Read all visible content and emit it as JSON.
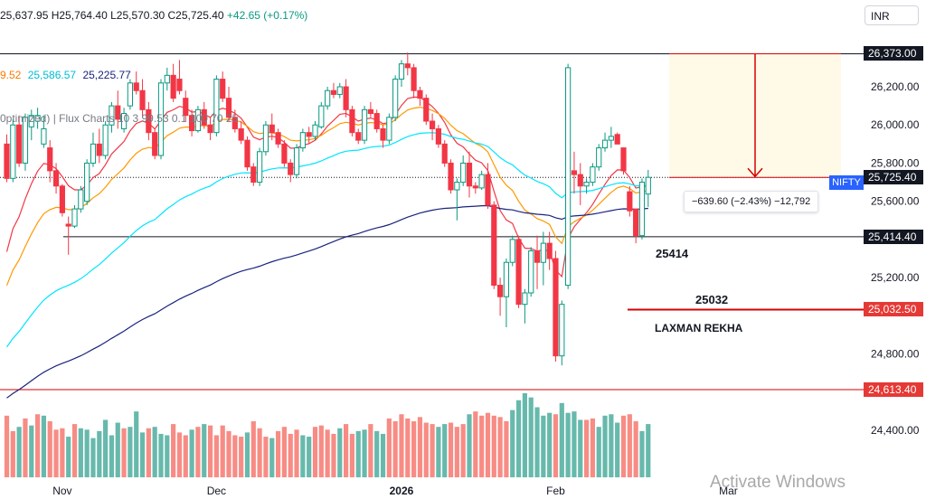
{
  "header": {
    "ohlc_text": "25,637.95 H25,764.40 L25,570.30 C25,725.40",
    "change_text": "+42.65 (+0.17%)",
    "currency": "INR"
  },
  "indicators": {
    "ma_values": [
      {
        "text": "9.52",
        "color": "#f57c00"
      },
      {
        "text": "25,586.57",
        "color": "#00bcd4"
      },
      {
        "text": "25,225.77",
        "color": "#1a237e"
      }
    ],
    "flux_label": "0ptimized) | Flux Charts 10 3 99.53 0.1 100 70 25"
  },
  "annotations": {
    "level_1": "25414",
    "level_2": "25032",
    "laxman_label": "LAXMAN REKHA",
    "measure_text": "−639.60 (−2.43%) −12,792",
    "symbol_tag": "NIFTY"
  },
  "price_tags": [
    {
      "price": 26373,
      "text": "26,373.00",
      "color": "#131722"
    },
    {
      "price": 25725.4,
      "text": "25,725.40",
      "color": "#131722"
    },
    {
      "price": 25414.4,
      "text": "25,414.40",
      "color": "#131722"
    },
    {
      "price": 25032.5,
      "text": "25,032.50",
      "color": "#e53935"
    },
    {
      "price": 24613.4,
      "text": "24,613.40",
      "color": "#e53935"
    }
  ],
  "watermark": "Activate Windows",
  "colors": {
    "up": "#089981",
    "down": "#f23645",
    "vol_up": "#5fb5a8",
    "vol_down": "#f7867e",
    "ema_red": "#f23645",
    "ema_orange": "#ff9800",
    "ema_cyan": "#00e5ff",
    "ema_navy": "#1a237e",
    "level_red": "#d50000"
  },
  "chart_data": {
    "type": "candlestick",
    "symbol": "NIFTY",
    "y_ticks": [
      "24,400.00",
      "24,800.00",
      "25,200.00",
      "25,600.00",
      "25,800.00",
      "26,000.00",
      "26,200.00"
    ],
    "y_tick_values": [
      24400,
      24800,
      25200,
      25600,
      25800,
      26000,
      26200
    ],
    "x_labels": [
      "Nov",
      "Dec",
      "2026",
      "Feb",
      "Mar"
    ],
    "x_label_bars": [
      9,
      34,
      64,
      89,
      117
    ],
    "horizontal_levels": [
      {
        "price": 26373.0,
        "role": "resistance"
      },
      {
        "price": 25414.4,
        "role": "support"
      },
      {
        "price": 25032.5,
        "role": "laxman_rekha"
      },
      {
        "price": 24613.4,
        "role": "red_line"
      }
    ],
    "candles": [
      [
        25900,
        25950,
        25700,
        25720
      ],
      [
        25720,
        26030,
        25700,
        26000
      ],
      [
        26000,
        26050,
        25780,
        25800
      ],
      [
        25800,
        26060,
        25760,
        26040
      ],
      [
        25990,
        26080,
        25920,
        26050
      ],
      [
        26020,
        26090,
        25980,
        26050
      ],
      [
        25900,
        26050,
        25880,
        25980
      ],
      [
        25880,
        25920,
        25700,
        25760
      ],
      [
        25760,
        25800,
        25640,
        25680
      ],
      [
        25680,
        25690,
        25520,
        25540
      ],
      [
        25480,
        25520,
        25320,
        25470
      ],
      [
        25470,
        25580,
        25460,
        25560
      ],
      [
        25560,
        25680,
        25540,
        25660
      ],
      [
        25600,
        25820,
        25580,
        25800
      ],
      [
        25800,
        25960,
        25780,
        25900
      ],
      [
        25900,
        25980,
        25800,
        25840
      ],
      [
        25840,
        26020,
        25820,
        26000
      ],
      [
        26000,
        26120,
        25960,
        26100
      ],
      [
        26100,
        26180,
        25980,
        26030
      ],
      [
        25980,
        26090,
        25960,
        26060
      ],
      [
        26100,
        26240,
        26080,
        26220
      ],
      [
        26220,
        26280,
        26160,
        26180
      ],
      [
        26180,
        26240,
        26040,
        26080
      ],
      [
        26080,
        26120,
        25920,
        25960
      ],
      [
        25960,
        25980,
        25820,
        25840
      ],
      [
        25840,
        26240,
        25820,
        26220
      ],
      [
        26220,
        26300,
        26180,
        26260
      ],
      [
        26260,
        26320,
        26120,
        26140
      ],
      [
        26240,
        26340,
        26160,
        26180
      ],
      [
        26140,
        26180,
        26020,
        26050
      ],
      [
        26050,
        26080,
        25940,
        25970
      ],
      [
        25970,
        26100,
        25960,
        26080
      ],
      [
        26080,
        26120,
        25980,
        26000
      ],
      [
        26000,
        26040,
        25920,
        25960
      ],
      [
        25960,
        26260,
        25940,
        26240
      ],
      [
        26240,
        26280,
        26120,
        26140
      ],
      [
        26140,
        26200,
        26020,
        26040
      ],
      [
        26040,
        26080,
        25960,
        25980
      ],
      [
        25980,
        26020,
        25900,
        25920
      ],
      [
        25920,
        25940,
        25760,
        25780
      ],
      [
        25780,
        25800,
        25680,
        25700
      ],
      [
        25700,
        25880,
        25680,
        25860
      ],
      [
        25860,
        26020,
        25840,
        26000
      ],
      [
        26000,
        26060,
        25920,
        25960
      ],
      [
        25960,
        25980,
        25880,
        25900
      ],
      [
        25900,
        25920,
        25780,
        25800
      ],
      [
        25800,
        25820,
        25700,
        25740
      ],
      [
        25740,
        25900,
        25720,
        25880
      ],
      [
        25880,
        25980,
        25860,
        25960
      ],
      [
        25960,
        25990,
        25900,
        25940
      ],
      [
        25940,
        26020,
        25920,
        26000
      ],
      [
        25990,
        26120,
        25980,
        26100
      ],
      [
        26100,
        26200,
        26080,
        26180
      ],
      [
        26180,
        26220,
        26140,
        26160
      ],
      [
        26160,
        26220,
        26140,
        26200
      ],
      [
        26200,
        26240,
        26040,
        26080
      ],
      [
        26080,
        26100,
        25940,
        25960
      ],
      [
        25960,
        25980,
        25900,
        25920
      ],
      [
        25920,
        26100,
        25900,
        26080
      ],
      [
        26080,
        26120,
        26040,
        26060
      ],
      [
        26060,
        26080,
        25960,
        25980
      ],
      [
        25980,
        26000,
        25880,
        25920
      ],
      [
        25920,
        26060,
        25900,
        26040
      ],
      [
        26040,
        26260,
        26020,
        26240
      ],
      [
        26240,
        26340,
        26200,
        26320
      ],
      [
        26320,
        26380,
        26260,
        26300
      ],
      [
        26300,
        26320,
        26140,
        26180
      ],
      [
        26180,
        26200,
        26100,
        26140
      ],
      [
        26140,
        26160,
        26000,
        26020
      ],
      [
        26020,
        26060,
        25920,
        25980
      ],
      [
        25980,
        26000,
        25880,
        25900
      ],
      [
        25900,
        25920,
        25780,
        25800
      ],
      [
        25800,
        25820,
        25640,
        25660
      ],
      [
        25660,
        25720,
        25500,
        25700
      ],
      [
        25700,
        25840,
        25680,
        25800
      ],
      [
        25800,
        25860,
        25620,
        25680
      ],
      [
        25680,
        25700,
        25640,
        25670
      ],
      [
        25670,
        25760,
        25660,
        25740
      ],
      [
        25740,
        25800,
        25560,
        25580
      ],
      [
        25580,
        25600,
        25140,
        25160
      ],
      [
        25160,
        25200,
        25000,
        25100
      ],
      [
        25100,
        25300,
        24940,
        25280
      ],
      [
        25280,
        25420,
        25260,
        25400
      ],
      [
        25400,
        25420,
        25040,
        25060
      ],
      [
        25060,
        25140,
        24960,
        25120
      ],
      [
        25120,
        25360,
        25100,
        25340
      ],
      [
        25340,
        25420,
        25140,
        25280
      ],
      [
        25280,
        25440,
        25160,
        25380
      ],
      [
        25380,
        25440,
        25240,
        25300
      ],
      [
        25300,
        25340,
        24760,
        24790
      ],
      [
        24790,
        25080,
        24740,
        25060
      ],
      [
        25160,
        26320,
        25140,
        26300
      ],
      [
        25760,
        25860,
        25640,
        25740
      ],
      [
        25740,
        25800,
        25580,
        25680
      ],
      [
        25680,
        25720,
        25640,
        25700
      ],
      [
        25700,
        25800,
        25680,
        25780
      ],
      [
        25780,
        25900,
        25760,
        25880
      ],
      [
        25880,
        25960,
        25860,
        25920
      ],
      [
        25920,
        25990,
        25880,
        25940
      ],
      [
        25950,
        25960,
        25900,
        25900
      ],
      [
        25880,
        25880,
        25740,
        25760
      ],
      [
        25650,
        25680,
        25520,
        25550
      ],
      [
        25560,
        25560,
        25380,
        25420
      ],
      [
        25420,
        25720,
        25400,
        25700
      ],
      [
        25637.95,
        25764.4,
        25570.3,
        25725.4
      ]
    ],
    "volume": [
      [
        44,
        0
      ],
      [
        33,
        0
      ],
      [
        36,
        1
      ],
      [
        42,
        0
      ],
      [
        37,
        1
      ],
      [
        45,
        0
      ],
      [
        44,
        1
      ],
      [
        40,
        0
      ],
      [
        34,
        0
      ],
      [
        35,
        0
      ],
      [
        29,
        1
      ],
      [
        38,
        0
      ],
      [
        35,
        1
      ],
      [
        34,
        1
      ],
      [
        28,
        1
      ],
      [
        33,
        1
      ],
      [
        41,
        1
      ],
      [
        30,
        1
      ],
      [
        39,
        1
      ],
      [
        35,
        0
      ],
      [
        36,
        1
      ],
      [
        47,
        1
      ],
      [
        32,
        1
      ],
      [
        35,
        0
      ],
      [
        36,
        1
      ],
      [
        31,
        1
      ],
      [
        30,
        1
      ],
      [
        38,
        0
      ],
      [
        32,
        0
      ],
      [
        30,
        0
      ],
      [
        34,
        1
      ],
      [
        36,
        0
      ],
      [
        38,
        1
      ],
      [
        37,
        0
      ],
      [
        30,
        0
      ],
      [
        37,
        0
      ],
      [
        33,
        0
      ],
      [
        30,
        0
      ],
      [
        29,
        0
      ],
      [
        32,
        1
      ],
      [
        40,
        0
      ],
      [
        35,
        0
      ],
      [
        29,
        0
      ],
      [
        28,
        1
      ],
      [
        33,
        0
      ],
      [
        36,
        0
      ],
      [
        31,
        0
      ],
      [
        34,
        0
      ],
      [
        30,
        1
      ],
      [
        29,
        1
      ],
      [
        36,
        0
      ],
      [
        37,
        0
      ],
      [
        34,
        0
      ],
      [
        31,
        0
      ],
      [
        35,
        1
      ],
      [
        38,
        0
      ],
      [
        31,
        0
      ],
      [
        33,
        1
      ],
      [
        34,
        1
      ],
      [
        38,
        0
      ],
      [
        33,
        1
      ],
      [
        31,
        1
      ],
      [
        42,
        0
      ],
      [
        40,
        0
      ],
      [
        45,
        0
      ],
      [
        42,
        0
      ],
      [
        40,
        0
      ],
      [
        43,
        0
      ],
      [
        39,
        0
      ],
      [
        38,
        0
      ],
      [
        36,
        1
      ],
      [
        38,
        1
      ],
      [
        39,
        0
      ],
      [
        36,
        0
      ],
      [
        38,
        0
      ],
      [
        45,
        1
      ],
      [
        47,
        0
      ],
      [
        44,
        0
      ],
      [
        46,
        0
      ],
      [
        44,
        0
      ],
      [
        43,
        0
      ],
      [
        40,
        0
      ],
      [
        48,
        1
      ],
      [
        55,
        1
      ],
      [
        60,
        1
      ],
      [
        57,
        1
      ],
      [
        50,
        1
      ],
      [
        44,
        1
      ],
      [
        46,
        1
      ],
      [
        45,
        0
      ],
      [
        53,
        1
      ],
      [
        46,
        1
      ],
      [
        47,
        1
      ],
      [
        41,
        1
      ],
      [
        41,
        0
      ],
      [
        42,
        0
      ],
      [
        36,
        1
      ],
      [
        44,
        1
      ],
      [
        45,
        1
      ],
      [
        39,
        1
      ],
      [
        44,
        0
      ],
      [
        45,
        0
      ],
      [
        40,
        0
      ],
      [
        33,
        1
      ],
      [
        38,
        1
      ]
    ]
  }
}
